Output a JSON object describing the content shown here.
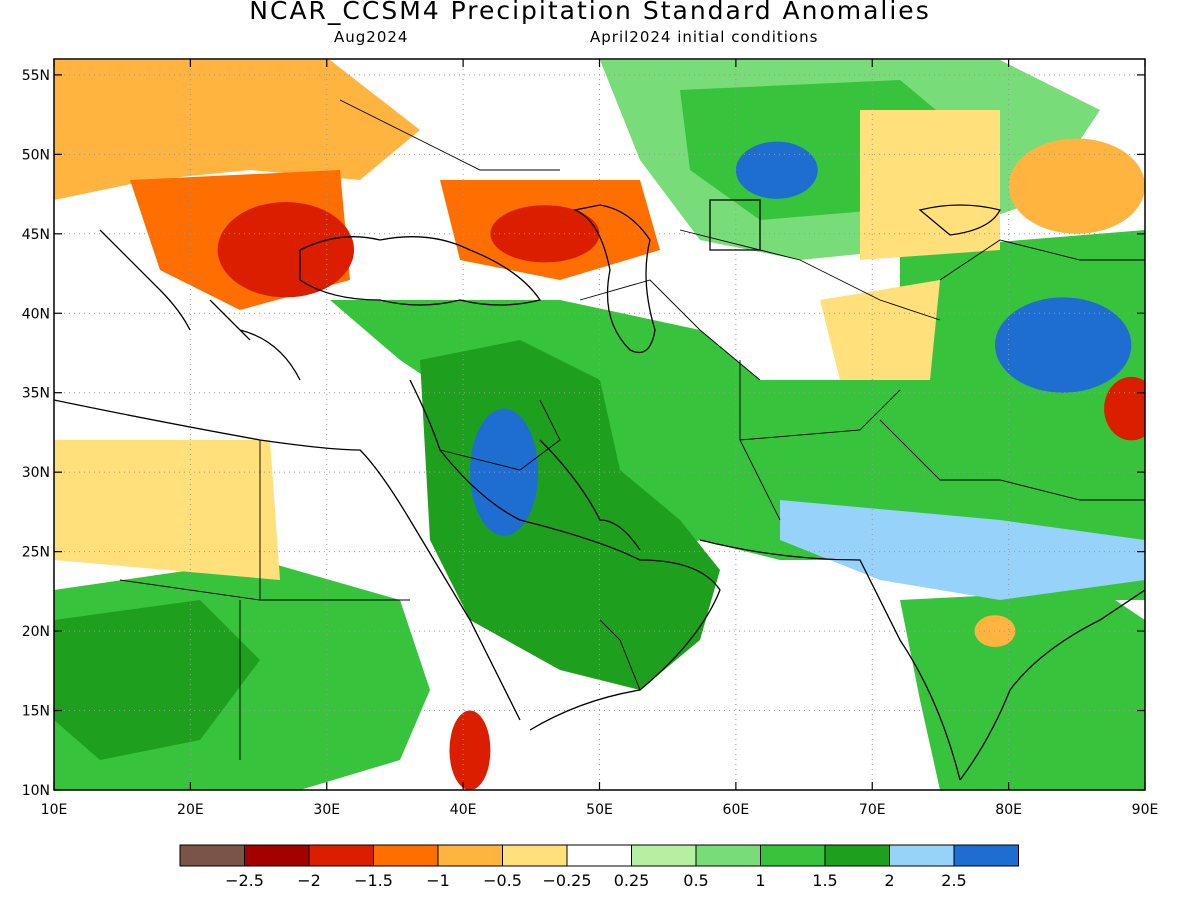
{
  "header": {
    "title": "NCAR_CCSM4 Precipitation Standard Anomalies",
    "valid_month": "Aug2024",
    "init_conditions": "April2024 initial conditions"
  },
  "map": {
    "lon_range": [
      10,
      90
    ],
    "lat_range": [
      10,
      56
    ],
    "lon_ticks": [
      "10E",
      "20E",
      "30E",
      "40E",
      "50E",
      "60E",
      "70E",
      "80E",
      "90E"
    ],
    "lat_ticks": [
      "55N",
      "50N",
      "45N",
      "40N",
      "35N",
      "30N",
      "25N",
      "20N",
      "15N",
      "10N"
    ],
    "gridlines": "dotted",
    "land_default_color": "#ffffff",
    "anomaly_regions": [
      {
        "name": "balkans-black-sea-dry",
        "level": -2,
        "lon": 27,
        "lat": 44,
        "rx": 5,
        "ry": 3
      },
      {
        "name": "caucasus-north-dry",
        "level": -2,
        "lon": 46,
        "lat": 45,
        "rx": 4,
        "ry": 1.8
      },
      {
        "name": "iraq-wet",
        "level": 2.5,
        "lon": 43,
        "lat": 30,
        "rx": 2.5,
        "ry": 4
      },
      {
        "name": "kazakhstan-wet",
        "level": 2.5,
        "lon": 63,
        "lat": 49,
        "rx": 3,
        "ry": 1.8
      },
      {
        "name": "tibet-wet",
        "level": 2.5,
        "lon": 84,
        "lat": 38,
        "rx": 5,
        "ry": 3
      },
      {
        "name": "bay-of-bengal-dry",
        "level": -2,
        "lon": 89,
        "lat": 34,
        "rx": 2,
        "ry": 2
      },
      {
        "name": "northeast-dry",
        "level": -1,
        "lon": 85,
        "lat": 48,
        "rx": 5,
        "ry": 3
      },
      {
        "name": "ethiopia-dry",
        "level": -2,
        "lon": 40.5,
        "lat": 12.5,
        "rx": 1.5,
        "ry": 2.5
      },
      {
        "name": "sahara-north-dry",
        "level": -0.5,
        "lon": 17,
        "lat": 28,
        "rx": 7,
        "ry": 3
      },
      {
        "name": "central-india-dry",
        "level": -1,
        "lon": 79,
        "lat": 20,
        "rx": 1.5,
        "ry": 1
      }
    ]
  },
  "colorbar": {
    "colors": [
      "#7a5546",
      "#a50000",
      "#dc1e00",
      "#ff6e00",
      "#ffb440",
      "#ffe07a",
      "#ffffff",
      "#b4f0a0",
      "#78dc78",
      "#37c33c",
      "#1ea01e",
      "#96d2fa",
      "#1e6ed2"
    ],
    "labels": [
      "−2.5",
      "−2",
      "−1.5",
      "−1",
      "−0.5",
      "−0.25",
      "0.25",
      "0.5",
      "1",
      "1.5",
      "2",
      "2.5"
    ]
  }
}
